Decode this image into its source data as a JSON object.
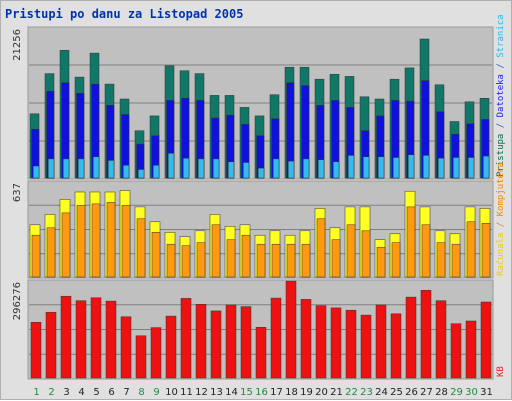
{
  "chart_data": {
    "type": "bar",
    "title": "Pristupi po danu za Listopad 2005",
    "categories": [
      "1",
      "2",
      "3",
      "4",
      "5",
      "6",
      "7",
      "8",
      "9",
      "10",
      "11",
      "12",
      "13",
      "14",
      "15",
      "16",
      "17",
      "18",
      "19",
      "20",
      "21",
      "22",
      "23",
      "24",
      "25",
      "26",
      "27",
      "28",
      "29",
      "30",
      "31"
    ],
    "weekend_days": [
      "1",
      "2",
      "8",
      "9",
      "15",
      "16",
      "22",
      "23",
      "29",
      "30"
    ],
    "panels": [
      {
        "id": "top",
        "max_label": "21256",
        "ymax": 21256,
        "right_label_parts": [
          {
            "text": "Pristupa",
            "color": "#006a4e"
          },
          {
            "text": " / ",
            "color": "#3355cc"
          },
          {
            "text": "Datoteka",
            "color": "#2222ee"
          },
          {
            "text": " / ",
            "color": "#3355cc"
          },
          {
            "text": "Stranica",
            "color": "#22bbee"
          }
        ],
        "series": [
          {
            "name": "Pristupa",
            "color": "#117766",
            "values": [
              9100,
              14800,
              18100,
              14300,
              17700,
              13300,
              11200,
              6700,
              8800,
              15900,
              15200,
              14800,
              11700,
              11700,
              10000,
              8800,
              11800,
              15700,
              15700,
              14000,
              14700,
              14400,
              11500,
              11200,
              14000,
              15600,
              19700,
              13200,
              8000,
              10800,
              11300
            ]
          },
          {
            "name": "Datoteka",
            "color": "#1111dd",
            "values": [
              6900,
              12300,
              13500,
              12000,
              13300,
              10300,
              9000,
              4800,
              6000,
              11000,
              11300,
              11000,
              8500,
              8900,
              7600,
              6000,
              8400,
              13500,
              13100,
              10300,
              11000,
              10000,
              6700,
              8800,
              11000,
              10900,
              13800,
              9400,
              6200,
              7700,
              8300
            ]
          },
          {
            "name": "Stranica",
            "color": "#33bbee",
            "values": [
              1700,
              2700,
              2700,
              2700,
              3000,
              2500,
              1800,
              1200,
              1800,
              3500,
              2800,
              2700,
              2700,
              2300,
              2200,
              1400,
              2700,
              2400,
              2700,
              2600,
              2300,
              3200,
              3000,
              3000,
              2900,
              3300,
              3200,
              2800,
              2900,
              2900,
              3100
            ]
          }
        ]
      },
      {
        "id": "middle",
        "max_label": "637",
        "ymax": 637,
        "right_label_parts": [
          {
            "text": "Računala",
            "color": "#eecc00"
          },
          {
            "text": " / ",
            "color": "#cc8833"
          },
          {
            "text": "Kompjutera",
            "color": "#ee8800"
          }
        ],
        "series": [
          {
            "name": "Računala",
            "color": "#ffff22",
            "values": [
              350,
              420,
              520,
              570,
              570,
              570,
              580,
              470,
              370,
              300,
              270,
              310,
              420,
              340,
              350,
              280,
              310,
              280,
              310,
              460,
              330,
              470,
              470,
              250,
              290,
              575,
              470,
              310,
              290,
              470,
              460
            ]
          },
          {
            "name": "Kompjutera",
            "color": "#ff9911",
            "values": [
              280,
              330,
              430,
              480,
              490,
              500,
              480,
              390,
              300,
              220,
              210,
              230,
              350,
              250,
              280,
              220,
              220,
              220,
              220,
              390,
              250,
              350,
              310,
              200,
              230,
              470,
              350,
              230,
              220,
              370,
              360
            ]
          }
        ]
      },
      {
        "id": "bottom",
        "max_label": "296276",
        "ymax": 296276,
        "right_label_parts": [
          {
            "text": "KB",
            "color": "#dd2222"
          }
        ],
        "series": [
          {
            "name": "KB",
            "color": "#ee1111",
            "values": [
              170000,
              201000,
              250000,
              236000,
              245000,
              235000,
              187000,
              129000,
              154000,
              189000,
              243000,
              225000,
              205000,
              223000,
              218000,
              155000,
              244000,
              296000,
              240000,
              221000,
              214000,
              207000,
              192000,
              223000,
              196000,
              247000,
              268000,
              236000,
              166000,
              174000,
              232000
            ]
          }
        ]
      }
    ]
  }
}
